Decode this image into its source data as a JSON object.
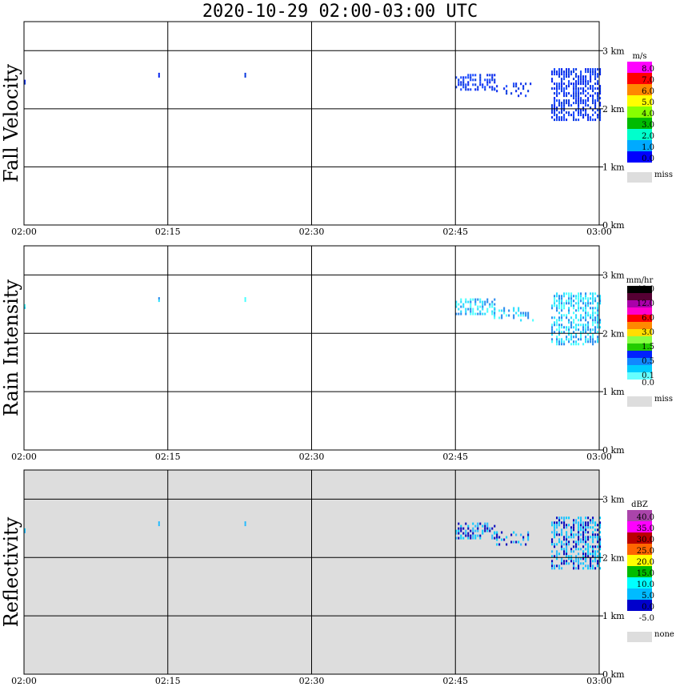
{
  "title": "2020-10-29   02:00-03:00 UTC",
  "chart_data": {
    "type": "heatmap",
    "x_ticks": [
      "02:00",
      "02:15",
      "02:30",
      "02:45",
      "03:00"
    ],
    "y_ticks": [
      "0 km",
      "1 km",
      "2 km",
      "3 km"
    ],
    "xlim": [
      "02:00",
      "03:00"
    ],
    "ylim_km": [
      0,
      3.5
    ],
    "grid": true,
    "panels": [
      {
        "label": "Fall Velocity",
        "unit": "m/s",
        "background": "#ffffff",
        "scale": [
          {
            "label": "8.0",
            "color": "#ff00ff"
          },
          {
            "label": "7.0",
            "color": "#ff0000"
          },
          {
            "label": "6.0",
            "color": "#ff8800"
          },
          {
            "label": "5.0",
            "color": "#ffff00"
          },
          {
            "label": "4.0",
            "color": "#88ff00"
          },
          {
            "label": "3.0",
            "color": "#00bb00"
          },
          {
            "label": "2.0",
            "color": "#00ffcc"
          },
          {
            "label": "1.0",
            "color": "#00aaff"
          },
          {
            "label": "0.0",
            "color": "#0000ff"
          }
        ],
        "miss_label": "miss",
        "miss_color": "#dddddd",
        "echo_colors": [
          "#0022ee",
          "#1144ff",
          "#0033dd"
        ]
      },
      {
        "label": "Rain Intensity",
        "unit": "mm/hr",
        "background": "#ffffff",
        "scale": [
          {
            "label": "48.0",
            "color": "#000000"
          },
          {
            "label": "",
            "color": "#550033"
          },
          {
            "label": "12.0",
            "color": "#aa00aa"
          },
          {
            "label": "",
            "color": "#ff00cc"
          },
          {
            "label": "6.0",
            "color": "#ff0000"
          },
          {
            "label": "",
            "color": "#ff8800"
          },
          {
            "label": "3.0",
            "color": "#ffdd00"
          },
          {
            "label": "",
            "color": "#88ff44"
          },
          {
            "label": "1.5",
            "color": "#22cc00"
          },
          {
            "label": "",
            "color": "#0022ff"
          },
          {
            "label": "0.5",
            "color": "#1188ff"
          },
          {
            "label": "",
            "color": "#00ccff"
          },
          {
            "label": "0.1",
            "color": "#66ffff"
          },
          {
            "label": "0.0",
            "color": "#ffffff"
          }
        ],
        "miss_label": "miss",
        "miss_color": "#dddddd",
        "echo_colors": [
          "#44ffff",
          "#22ddff",
          "#2288ee"
        ]
      },
      {
        "label": "Reflectivity",
        "unit": "dBZ",
        "background": "#dddddd",
        "scale": [
          {
            "label": "40.0",
            "color": "#aa44aa"
          },
          {
            "label": "35.0",
            "color": "#ff00ff"
          },
          {
            "label": "30.0",
            "color": "#bb0000"
          },
          {
            "label": "25.0",
            "color": "#ff6600"
          },
          {
            "label": "20.0",
            "color": "#ffff00"
          },
          {
            "label": "15.0",
            "color": "#00bb00"
          },
          {
            "label": "10.0",
            "color": "#00ffff"
          },
          {
            "label": "5.0",
            "color": "#00bbff"
          },
          {
            "label": "0.0",
            "color": "#0000cc"
          },
          {
            "label": "-5.0",
            "color": "#ffffff"
          }
        ],
        "miss_label": "none",
        "miss_color": "#dddddd",
        "echo_colors": [
          "#00ccff",
          "#22bbff",
          "#0000bb"
        ]
      }
    ],
    "echoes": [
      {
        "t_start": "02:45",
        "t_end": "02:49",
        "z_km": [
          2.3,
          2.6
        ],
        "density": 0.55
      },
      {
        "t_start": "02:49",
        "t_end": "02:53",
        "z_km": [
          2.2,
          2.45
        ],
        "density": 0.3
      },
      {
        "t_start": "02:55",
        "t_end": "03:00",
        "z_km": [
          1.8,
          2.7
        ],
        "density": 0.6
      },
      {
        "t_start": "02:00",
        "t_end": "02:00",
        "z_km": [
          2.4,
          2.5
        ],
        "density": 0.6
      },
      {
        "t_start": "02:14",
        "t_end": "02:14",
        "z_km": [
          2.55,
          2.62
        ],
        "density": 1.0
      },
      {
        "t_start": "02:23",
        "t_end": "02:23",
        "z_km": [
          2.55,
          2.62
        ],
        "density": 1.0
      }
    ]
  }
}
